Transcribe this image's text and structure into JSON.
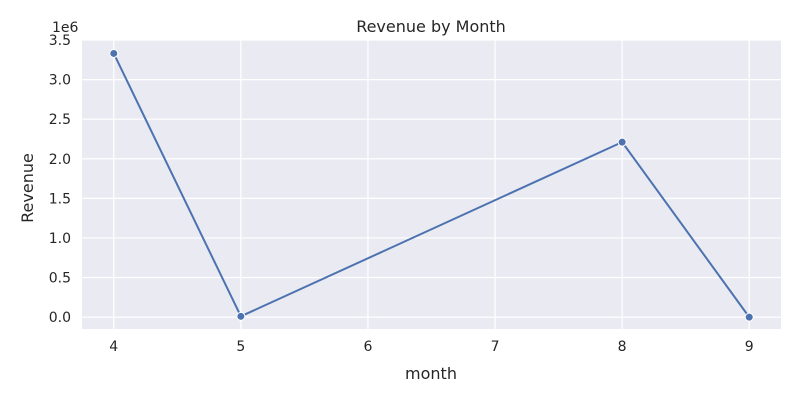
{
  "chart_data": {
    "type": "line",
    "title": "Revenue by Month",
    "xlabel": "month",
    "ylabel": "Revenue",
    "y_offset_label": "1e6",
    "x": [
      4,
      5,
      8,
      9
    ],
    "series": [
      {
        "values": [
          3330000,
          10000,
          2210000,
          0
        ]
      }
    ],
    "xlim": [
      3.75,
      9.25
    ],
    "ylim": [
      -150000,
      3500000
    ],
    "x_ticks": [
      4,
      5,
      6,
      7,
      8,
      9
    ],
    "x_tick_labels": [
      "4",
      "5",
      "6",
      "7",
      "8",
      "9"
    ],
    "y_ticks": [
      0,
      500000,
      1000000,
      1500000,
      2000000,
      2500000,
      3000000,
      3500000
    ],
    "y_tick_labels": [
      "0.0",
      "0.5",
      "1.0",
      "1.5",
      "2.0",
      "2.5",
      "3.0",
      "3.5"
    ],
    "grid": true,
    "colors": {
      "line": "#4c72b0",
      "background": "#eaeaf2",
      "grid": "#ffffff"
    }
  }
}
